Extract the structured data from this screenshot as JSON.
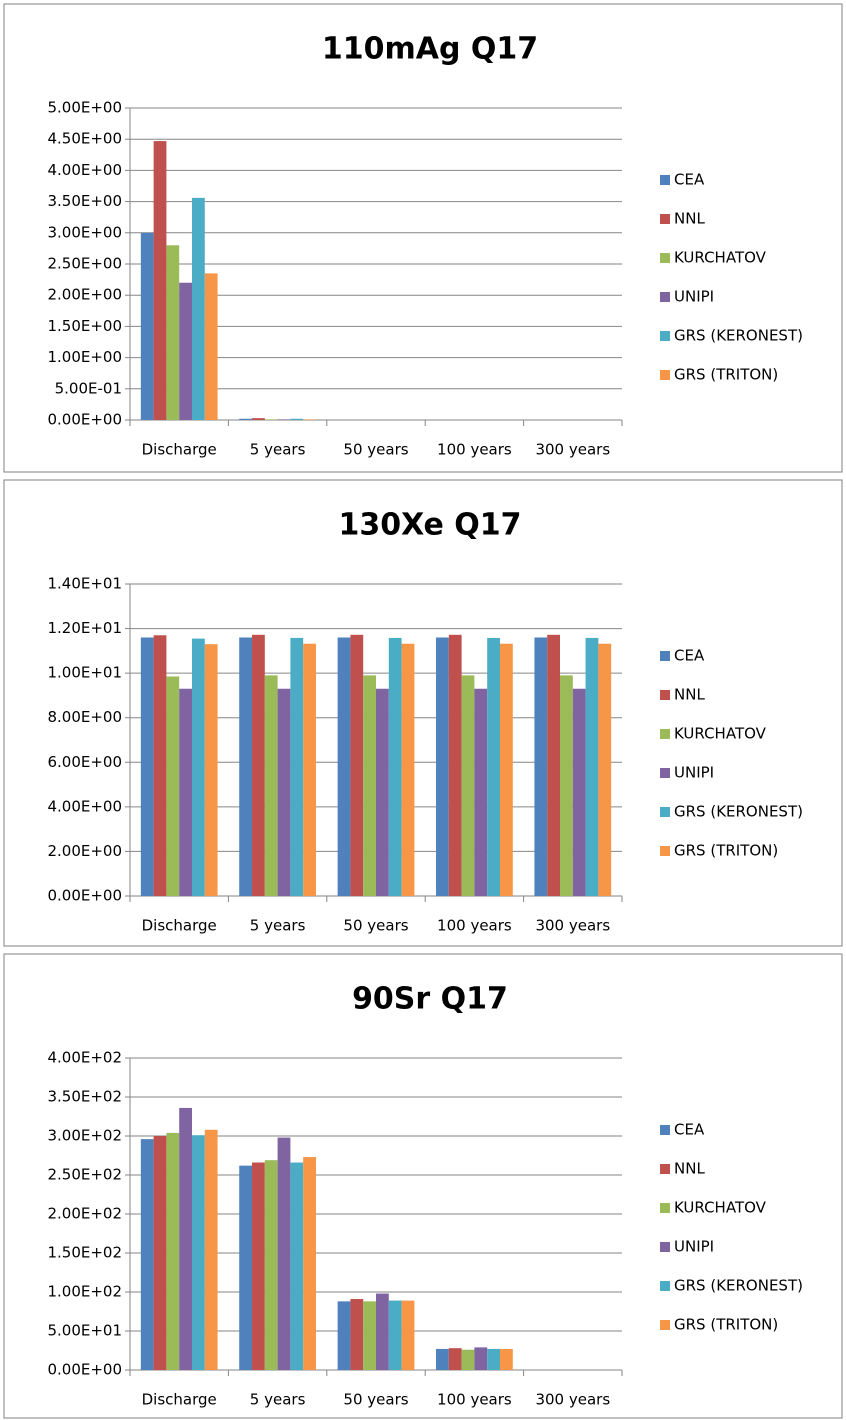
{
  "chart_data": [
    {
      "type": "bar",
      "title": "110mAg Q17",
      "categories": [
        "Discharge",
        "5 years",
        "50 years",
        "100 years",
        "300 years"
      ],
      "series": [
        {
          "name": "CEA",
          "color": "#4f81bd",
          "values": [
            3.0,
            0.02,
            0,
            0,
            0
          ]
        },
        {
          "name": "NNL",
          "color": "#c0504d",
          "values": [
            4.47,
            0.03,
            0,
            0,
            0
          ]
        },
        {
          "name": "KURCHATOV",
          "color": "#9bbb59",
          "values": [
            2.8,
            0.01,
            0,
            0,
            0
          ]
        },
        {
          "name": "UNIPI",
          "color": "#8064a2",
          "values": [
            2.2,
            0.01,
            0,
            0,
            0
          ]
        },
        {
          "name": "GRS (KERONEST)",
          "color": "#4bacc6",
          "values": [
            3.56,
            0.02,
            0,
            0,
            0
          ]
        },
        {
          "name": "GRS (TRITON)",
          "color": "#f79646",
          "values": [
            2.35,
            0.01,
            0,
            0,
            0
          ]
        }
      ],
      "ylim": [
        0,
        5
      ],
      "yticks": [
        {
          "value": 0,
          "label": "0.00E+00"
        },
        {
          "value": 0.5,
          "label": "5.00E-01"
        },
        {
          "value": 1,
          "label": "1.00E+00"
        },
        {
          "value": 1.5,
          "label": "1.50E+00"
        },
        {
          "value": 2,
          "label": "2.00E+00"
        },
        {
          "value": 2.5,
          "label": "2.50E+00"
        },
        {
          "value": 3,
          "label": "3.00E+00"
        },
        {
          "value": 3.5,
          "label": "3.50E+00"
        },
        {
          "value": 4,
          "label": "4.00E+00"
        },
        {
          "value": 4.5,
          "label": "4.50E+00"
        },
        {
          "value": 5,
          "label": "5.00E+00"
        }
      ],
      "grid": true,
      "legend": "right"
    },
    {
      "type": "bar",
      "title": "130Xe Q17",
      "categories": [
        "Discharge",
        "5 years",
        "50 years",
        "100 years",
        "300 years"
      ],
      "series": [
        {
          "name": "CEA",
          "color": "#4f81bd",
          "values": [
            11.6,
            11.6,
            11.6,
            11.6,
            11.6
          ]
        },
        {
          "name": "NNL",
          "color": "#c0504d",
          "values": [
            11.7,
            11.72,
            11.72,
            11.72,
            11.72
          ]
        },
        {
          "name": "KURCHATOV",
          "color": "#9bbb59",
          "values": [
            9.85,
            9.9,
            9.9,
            9.9,
            9.9
          ]
        },
        {
          "name": "UNIPI",
          "color": "#8064a2",
          "values": [
            9.3,
            9.3,
            9.3,
            9.3,
            9.3
          ]
        },
        {
          "name": "GRS (KERONEST)",
          "color": "#4bacc6",
          "values": [
            11.55,
            11.58,
            11.58,
            11.58,
            11.58
          ]
        },
        {
          "name": "GRS (TRITON)",
          "color": "#f79646",
          "values": [
            11.3,
            11.32,
            11.32,
            11.32,
            11.32
          ]
        }
      ],
      "ylim": [
        0,
        14
      ],
      "yticks": [
        {
          "value": 0,
          "label": "0.00E+00"
        },
        {
          "value": 2,
          "label": "2.00E+00"
        },
        {
          "value": 4,
          "label": "4.00E+00"
        },
        {
          "value": 6,
          "label": "6.00E+00"
        },
        {
          "value": 8,
          "label": "8.00E+00"
        },
        {
          "value": 10,
          "label": "1.00E+01"
        },
        {
          "value": 12,
          "label": "1.20E+01"
        },
        {
          "value": 14,
          "label": "1.40E+01"
        }
      ],
      "grid": true,
      "legend": "right"
    },
    {
      "type": "bar",
      "title": "90Sr Q17",
      "categories": [
        "Discharge",
        "5 years",
        "50 years",
        "100 years",
        "300 years"
      ],
      "series": [
        {
          "name": "CEA",
          "color": "#4f81bd",
          "values": [
            296,
            262,
            88,
            27,
            0
          ]
        },
        {
          "name": "NNL",
          "color": "#c0504d",
          "values": [
            300,
            266,
            91,
            28,
            0
          ]
        },
        {
          "name": "KURCHATOV",
          "color": "#9bbb59",
          "values": [
            304,
            269,
            88,
            26,
            0
          ]
        },
        {
          "name": "UNIPI",
          "color": "#8064a2",
          "values": [
            336,
            298,
            98,
            29,
            0
          ]
        },
        {
          "name": "GRS (KERONEST)",
          "color": "#4bacc6",
          "values": [
            301,
            266,
            89,
            27,
            0
          ]
        },
        {
          "name": "GRS (TRITON)",
          "color": "#f79646",
          "values": [
            308,
            273,
            89,
            27,
            0
          ]
        }
      ],
      "ylim": [
        0,
        400
      ],
      "yticks": [
        {
          "value": 0,
          "label": "0.00E+00"
        },
        {
          "value": 50,
          "label": "5.00E+01"
        },
        {
          "value": 100,
          "label": "1.00E+02"
        },
        {
          "value": 150,
          "label": "1.50E+02"
        },
        {
          "value": 200,
          "label": "2.00E+02"
        },
        {
          "value": 250,
          "label": "2.50E+02"
        },
        {
          "value": 300,
          "label": "3.00E+02"
        },
        {
          "value": 350,
          "label": "3.50E+02"
        },
        {
          "value": 400,
          "label": "4.00E+02"
        }
      ],
      "grid": true,
      "legend": "right"
    }
  ]
}
